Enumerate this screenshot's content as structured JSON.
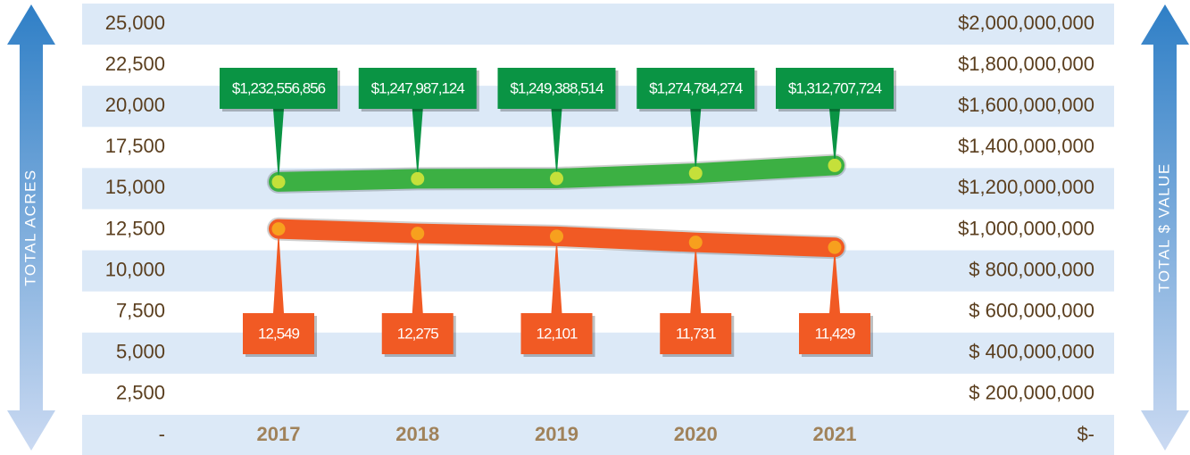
{
  "chart_data": {
    "type": "line",
    "y_label": "TOTAL ACRES",
    "y2_label": "TOTAL $ VALUE",
    "categories": [
      "2017",
      "2018",
      "2019",
      "2020",
      "2021"
    ],
    "series": [
      {
        "name": "Total $ Value",
        "color": "#3cb043",
        "label_color": "#0a9444",
        "axis": "y2",
        "values": [
          1232556856,
          1247987124,
          1249388514,
          1274784274,
          1312707724
        ],
        "value_labels": [
          "$1,232,556,856",
          "$1,247,987,124",
          "$1,249,388,514",
          "$1,274,784,274",
          "$1,312,707,724"
        ]
      },
      {
        "name": "Total Acres",
        "color": "#f15a24",
        "label_color": "#f15a24",
        "values": [
          12549,
          12275,
          12101,
          11731,
          11429
        ],
        "value_labels": [
          "12,549",
          "12,275",
          "12,101",
          "11,731",
          "11,429"
        ]
      }
    ],
    "ylim": [
      0,
      25000
    ],
    "yticks": [
      {
        "value": 0,
        "label": "-"
      },
      {
        "value": 2500,
        "label": "2,500"
      },
      {
        "value": 5000,
        "label": "5,000"
      },
      {
        "value": 7500,
        "label": "7,500"
      },
      {
        "value": 10000,
        "label": "10,000"
      },
      {
        "value": 12500,
        "label": "12,500"
      },
      {
        "value": 15000,
        "label": "15,000"
      },
      {
        "value": 17500,
        "label": "17,500"
      },
      {
        "value": 20000,
        "label": "20,000"
      },
      {
        "value": 22500,
        "label": "22,500"
      },
      {
        "value": 25000,
        "label": "25,000"
      }
    ],
    "y2lim": [
      0,
      2000000000
    ],
    "y2ticks": [
      {
        "value": 0,
        "label": "$-"
      },
      {
        "value": 200000000,
        "label": "$ 200,000,000"
      },
      {
        "value": 400000000,
        "label": "$ 400,000,000"
      },
      {
        "value": 600000000,
        "label": "$ 600,000,000"
      },
      {
        "value": 800000000,
        "label": "$ 800,000,000"
      },
      {
        "value": 1000000000,
        "label": "$1,000,000,000"
      },
      {
        "value": 1200000000,
        "label": "$1,200,000,000"
      },
      {
        "value": 1400000000,
        "label": "$1,400,000,000"
      },
      {
        "value": 1600000000,
        "label": "$1,600,000,000"
      },
      {
        "value": 1800000000,
        "label": "$1,800,000,000"
      },
      {
        "value": 2000000000,
        "label": "$2,000,000,000"
      }
    ],
    "grid": true
  }
}
